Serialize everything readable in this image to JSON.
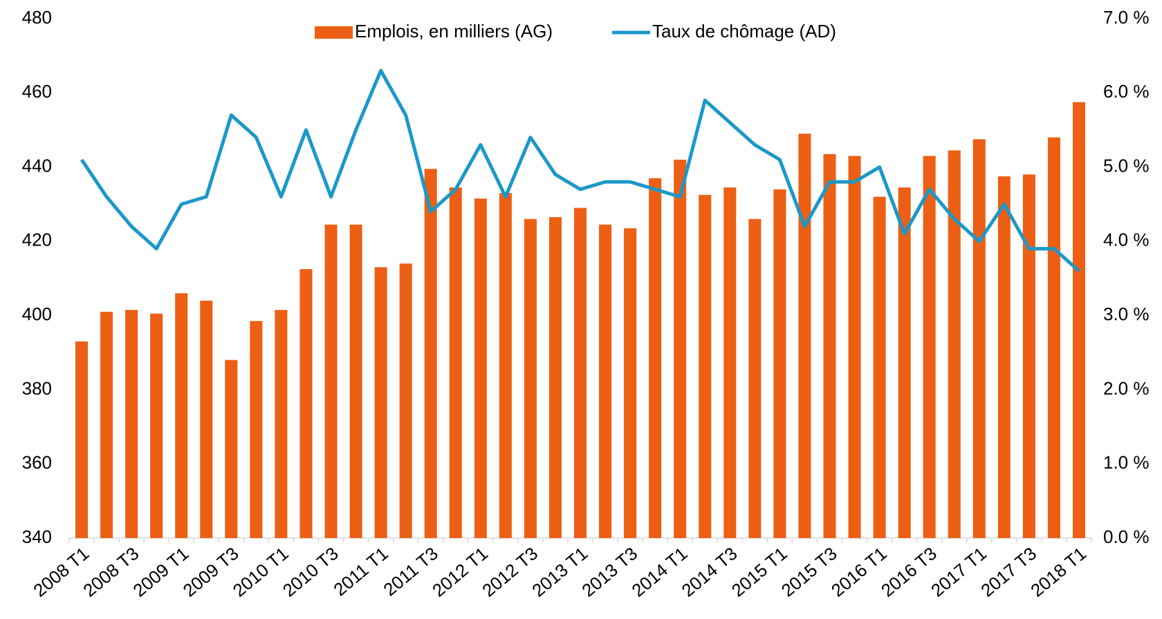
{
  "chart_data": {
    "type": "bar",
    "categories": [
      "2008 T1",
      null,
      "2008 T3",
      null,
      "2009 T1",
      null,
      "2009 T3",
      null,
      "2010 T1",
      null,
      "2010 T3",
      null,
      "2011 T1",
      null,
      "2011 T3",
      null,
      "2012 T1",
      null,
      "2012 T3",
      null,
      "2013 T1",
      null,
      "2013 T3",
      null,
      "2014 T1",
      null,
      "2014 T3",
      null,
      "2015 T1",
      null,
      "2015 T3",
      null,
      "2016 T1",
      null,
      "2016 T3",
      null,
      "2017 T1",
      null,
      "2017 T3",
      null,
      "2018 T1"
    ],
    "series": [
      {
        "name": "Emplois, en milliers (AG)",
        "type": "bar",
        "color": "#ec5f14",
        "axis": "y",
        "values": [
          393,
          401,
          401.5,
          400.5,
          406,
          404,
          388,
          398.5,
          401.5,
          412.5,
          424.5,
          424.5,
          413,
          414,
          439.5,
          434.5,
          431.5,
          433,
          426,
          426.5,
          429,
          424.5,
          423.5,
          437,
          442,
          432.5,
          434.5,
          426,
          434,
          449,
          443.5,
          443,
          432,
          434.5,
          443,
          444.5,
          447.5,
          437.5,
          438,
          448,
          457.5
        ]
      },
      {
        "name": "Taux de chômage (AD)",
        "type": "line",
        "color": "#1b98c8",
        "axis": "y2",
        "values": [
          5.1,
          4.6,
          4.2,
          3.9,
          4.5,
          4.6,
          5.7,
          5.4,
          4.6,
          5.5,
          4.6,
          5.5,
          6.3,
          5.7,
          4.4,
          4.7,
          5.3,
          4.6,
          5.4,
          4.9,
          4.7,
          4.8,
          4.8,
          4.7,
          4.6,
          5.9,
          5.6,
          5.3,
          5.1,
          4.2,
          4.8,
          4.8,
          5.0,
          4.1,
          4.7,
          4.3,
          4.0,
          4.5,
          3.9,
          3.9,
          3.6
        ]
      }
    ],
    "ylim": [
      340,
      480
    ],
    "yticks": [
      340,
      360,
      380,
      400,
      420,
      440,
      460,
      480
    ],
    "y2lim": [
      0,
      7
    ],
    "y2ticks": [
      {
        "value": 0,
        "label": "0.0 %"
      },
      {
        "value": 1,
        "label": "1.0 %"
      },
      {
        "value": 2,
        "label": "2.0 %"
      },
      {
        "value": 3,
        "label": "3.0 %"
      },
      {
        "value": 4,
        "label": "4.0 %"
      },
      {
        "value": 5,
        "label": "5.0 %"
      },
      {
        "value": 6,
        "label": "6.0 %"
      },
      {
        "value": 7,
        "label": "7.0 %"
      }
    ],
    "grid": false,
    "legend": "top"
  }
}
